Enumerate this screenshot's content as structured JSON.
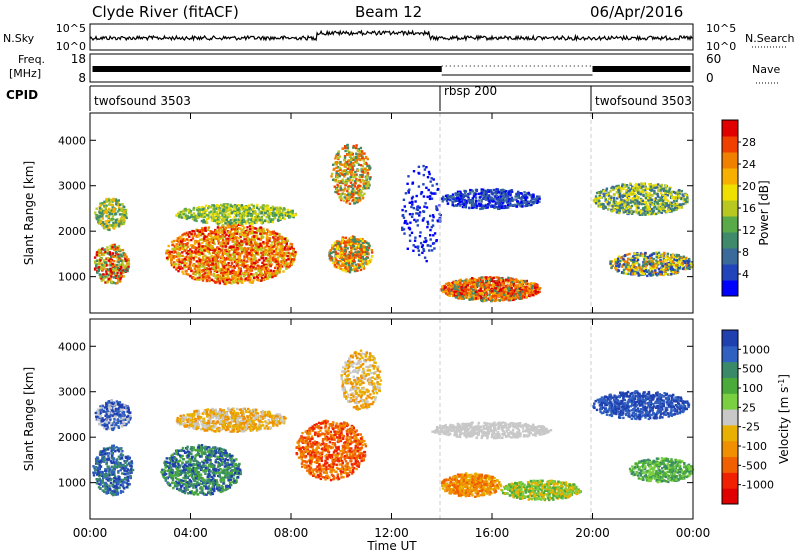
{
  "header": {
    "station": "Clyde River (fitACF)",
    "beam": "Beam 12",
    "date": "06/Apr/2016"
  },
  "colors": {
    "power_scale": [
      "#0000ff",
      "#2244bb",
      "#3a6a9a",
      "#3f8a6a",
      "#5aaa4a",
      "#b8c820",
      "#f0e000",
      "#f8b000",
      "#f08000",
      "#f04000",
      "#e00000"
    ],
    "velocity_scale": [
      "#2040b0",
      "#3060c0",
      "#3a8a6a",
      "#4aaa3a",
      "#7ad040",
      "#c8c8c8",
      "#e8b000",
      "#f09000",
      "#f06000",
      "#f02000",
      "#e00000"
    ]
  },
  "chart_data": [
    {
      "type": "line",
      "panel": "noise",
      "left_label": "N.Sky",
      "left_ticks": [
        "10^5",
        "10^0"
      ],
      "right_label": "N.Search",
      "right_ticks": [
        "10^5",
        "10^0"
      ]
    },
    {
      "type": "line",
      "panel": "frequency",
      "left_label_1": "Freq.",
      "left_label_2": "[MHz]",
      "left_ticks": [
        "18",
        "8"
      ],
      "right_label": "Nave",
      "right_ticks": [
        "60",
        "0"
      ]
    },
    {
      "type": "table",
      "panel": "cpid",
      "label": "CPID",
      "segments": [
        {
          "name": "twofsound 3503",
          "start": "00:00",
          "end": "14:00"
        },
        {
          "name": "rbsp 200",
          "start": "14:00",
          "end": "20:00"
        },
        {
          "name": "twofsound 3503",
          "start": "20:00",
          "end": "24:00"
        }
      ]
    },
    {
      "type": "heatmap",
      "panel": "power",
      "ylabel": "Slant Range [km]",
      "yticks": [
        "1000",
        "2000",
        "3000",
        "4000"
      ],
      "ylim": [
        200,
        4600
      ],
      "colorbar_label": "Power [dB]",
      "colorbar_ticks": [
        "4",
        "8",
        "12",
        "16",
        "20",
        "24",
        "28"
      ],
      "colorbar_range": [
        0,
        32
      ]
    },
    {
      "type": "heatmap",
      "panel": "velocity",
      "ylabel": "Slant Range [km]",
      "yticks": [
        "1000",
        "2000",
        "3000",
        "4000"
      ],
      "ylim": [
        200,
        4600
      ],
      "colorbar_label": "Velocity [m s",
      "colorbar_label_sup": "-1",
      "colorbar_label_end": "]",
      "colorbar_ticks": [
        "1000",
        "500",
        "100",
        "25",
        "-25",
        "-100",
        "-500",
        "-1000"
      ]
    }
  ],
  "x_axis": {
    "label": "Time UT",
    "ticks": [
      "00:00",
      "04:00",
      "08:00",
      "12:00",
      "16:00",
      "20:00",
      "00:00"
    ],
    "range_hours": [
      0,
      24
    ]
  }
}
